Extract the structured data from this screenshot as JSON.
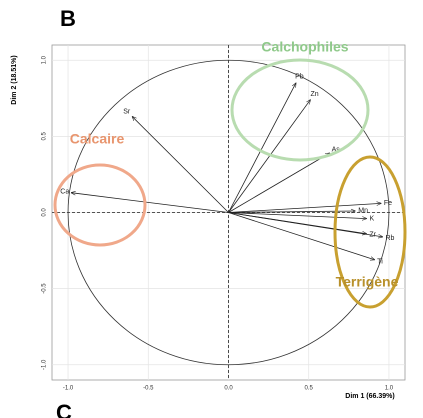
{
  "panel_label": "B",
  "next_panel_label": "C",
  "chart_data": {
    "type": "vector",
    "xlabel": "Dim 1 (66.39%)",
    "ylabel": "Dim 2 (18.51%)",
    "categories": [
      "Pb",
      "Zn",
      "As",
      "Sr",
      "Ca",
      "Fe",
      "Mn",
      "K",
      "Zr",
      "Rb",
      "Ti"
    ],
    "x": [
      0.42,
      0.51,
      0.63,
      -0.6,
      -0.98,
      0.95,
      0.79,
      0.86,
      0.86,
      0.96,
      0.91
    ],
    "values": [
      0.85,
      0.74,
      0.39,
      0.63,
      0.13,
      0.06,
      0.01,
      -0.04,
      -0.14,
      -0.16,
      -0.31
    ],
    "color": "#222222",
    "xlim": [
      -1.1,
      1.1
    ],
    "ylim": [
      -1.1,
      1.1
    ],
    "xticks": [
      {
        "value": -1,
        "label": "-1.0"
      },
      -0.5,
      {
        "value": 0,
        "label": "0.0"
      },
      0.5,
      {
        "value": 1,
        "label": "1.0"
      }
    ],
    "yticks": [
      {
        "value": -1,
        "label": "-1.0"
      },
      -0.5,
      {
        "value": 0,
        "label": "0.0"
      },
      0.5,
      {
        "value": 1,
        "label": "1.0"
      }
    ],
    "grid": true,
    "groups": [
      "Calchophiles",
      "Calcaire",
      "Terrigène"
    ]
  }
}
